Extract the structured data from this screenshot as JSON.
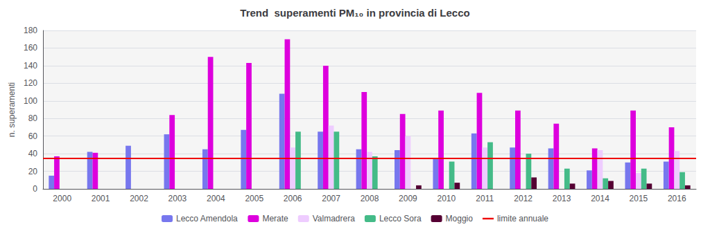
{
  "chart_data": {
    "type": "bar",
    "title": "Trend  superamenti PM₁₀ in provincia di Lecco",
    "ylabel": "n. superamenti",
    "categories": [
      "2000",
      "2001",
      "2002",
      "2003",
      "2004",
      "2005",
      "2006",
      "2007",
      "2008",
      "2009",
      "2010",
      "2011",
      "2012",
      "2013",
      "2014",
      "2015",
      "2016"
    ],
    "series": [
      {
        "name": "Lecco Amendola",
        "color": "#7777ee",
        "values": [
          15,
          42,
          49,
          62,
          45,
          67,
          108,
          65,
          45,
          44,
          35,
          63,
          47,
          46,
          21,
          30,
          31
        ]
      },
      {
        "name": "Merate",
        "color": "#dd00dd",
        "values": [
          37,
          41,
          0,
          84,
          150,
          143,
          170,
          140,
          110,
          85,
          89,
          109,
          89,
          74,
          46,
          89,
          70
        ]
      },
      {
        "name": "Valmadrera",
        "color": "#eeccff",
        "values": [
          0,
          0,
          0,
          0,
          0,
          0,
          47,
          72,
          42,
          60,
          0,
          47,
          0,
          0,
          44,
          18,
          43
        ]
      },
      {
        "name": "Lecco Sora",
        "color": "#44bb88",
        "values": [
          0,
          0,
          0,
          0,
          0,
          0,
          65,
          65,
          37,
          0,
          31,
          53,
          40,
          23,
          12,
          23,
          19
        ]
      },
      {
        "name": "Moggio",
        "color": "#550033",
        "values": [
          0,
          0,
          0,
          0,
          0,
          0,
          0,
          0,
          0,
          4,
          7,
          0,
          13,
          6,
          9,
          6,
          4
        ]
      }
    ],
    "reference_lines": [
      {
        "label": "limite annuale",
        "value": 35,
        "color": "#ee0000"
      }
    ],
    "ylim": [
      0,
      180
    ],
    "yticks": [
      0,
      20,
      40,
      60,
      80,
      100,
      120,
      140,
      160,
      180
    ],
    "grid": true,
    "legend": "bottom"
  }
}
